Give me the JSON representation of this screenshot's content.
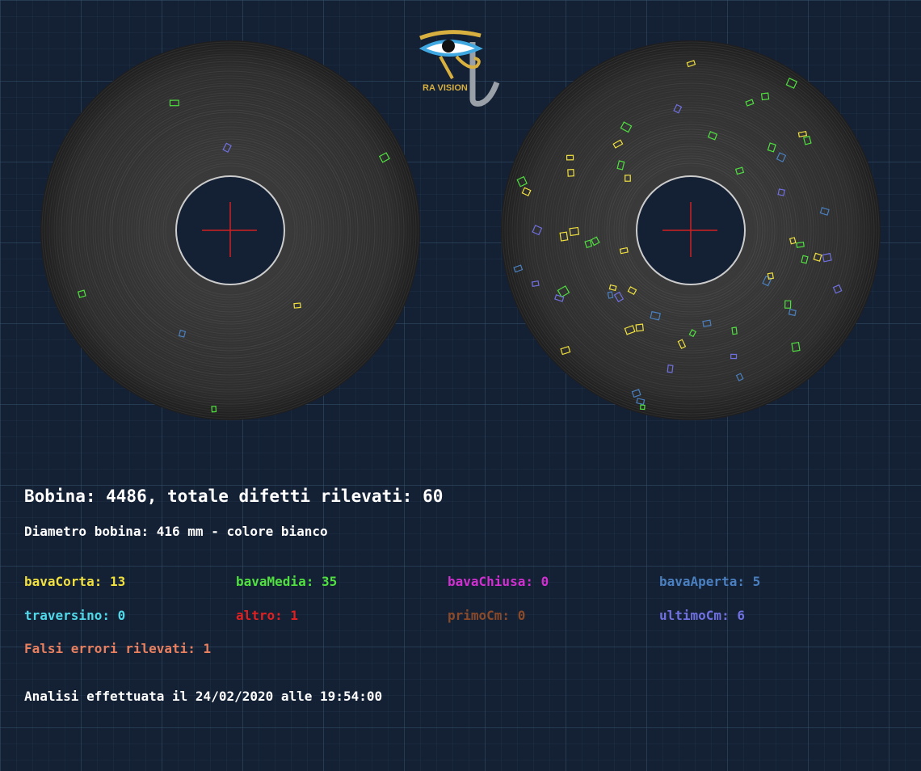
{
  "logo": {
    "text": "RA VISION"
  },
  "summary": {
    "title": "Bobina: 4486, totale difetti rilevati: 60",
    "diameter": "Diametro bobina: 416 mm - colore bianco"
  },
  "defects": [
    {
      "label": "bavaCorta: 13",
      "color": "#f0e040"
    },
    {
      "label": "bavaMedia: 35",
      "color": "#50e040"
    },
    {
      "label": "bavaChiusa: 0",
      "color": "#d030d0"
    },
    {
      "label": "bavaAperta: 5",
      "color": "#4a80c0"
    },
    {
      "label": "traversino: 0",
      "color": "#50d8e8"
    },
    {
      "label": "altro: 1",
      "color": "#e02020"
    },
    {
      "label": "primoCm: 0",
      "color": "#8a4a2a"
    },
    {
      "label": "ultimoCm: 6",
      "color": "#7070e0"
    }
  ],
  "false_errors": {
    "label": "Falsi errori rilevati: 1",
    "color": "#e88060"
  },
  "analysis": "Analisi effettuata il 24/02/2020 alle 19:54:00"
}
